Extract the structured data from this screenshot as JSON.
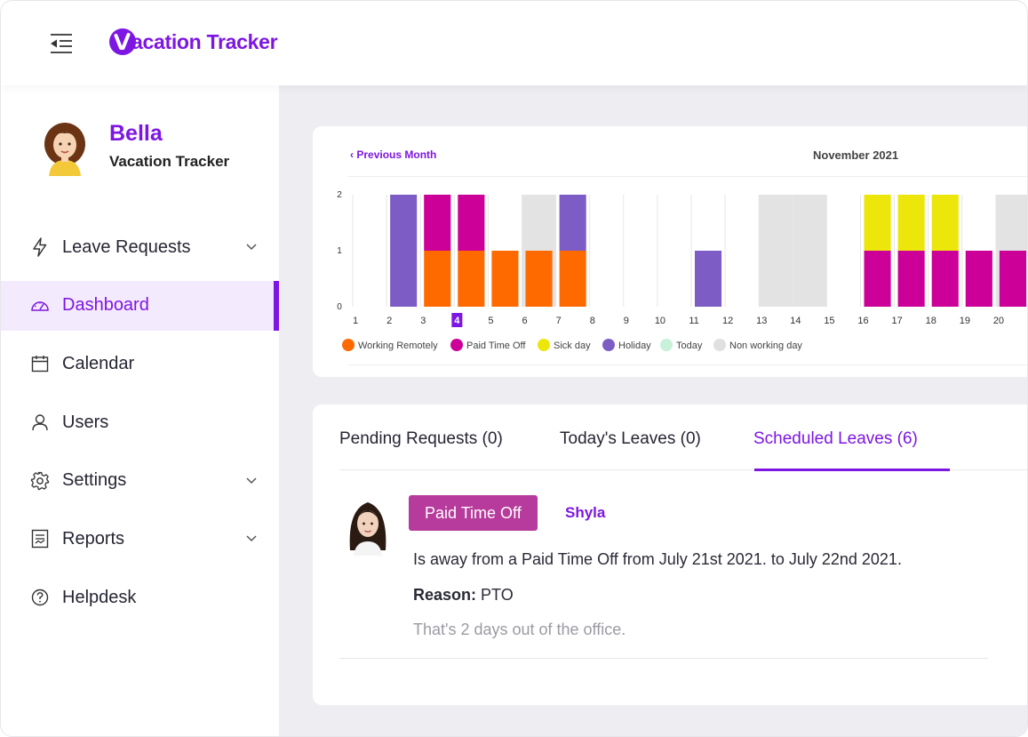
{
  "header": {
    "brand_name": "acation Tracker",
    "brand_mark": "V",
    "brand_color": "#7d16e3"
  },
  "sidebar": {
    "profile": {
      "name": "Bella",
      "subtitle": "Vacation Tracker"
    },
    "items": [
      {
        "label": "Leave Requests",
        "icon": "bolt-icon",
        "has_chevron": true,
        "active": false
      },
      {
        "label": "Dashboard",
        "icon": "dashboard-gauge-icon",
        "has_chevron": false,
        "active": true
      },
      {
        "label": "Calendar",
        "icon": "calendar-icon",
        "has_chevron": false,
        "active": false
      },
      {
        "label": "Users",
        "icon": "user-icon",
        "has_chevron": false,
        "active": false
      },
      {
        "label": "Settings",
        "icon": "gear-icon",
        "has_chevron": true,
        "active": false
      },
      {
        "label": "Reports",
        "icon": "report-icon",
        "has_chevron": true,
        "active": false
      },
      {
        "label": "Helpdesk",
        "icon": "help-icon",
        "has_chevron": false,
        "active": false
      }
    ]
  },
  "calendar": {
    "prev_label": "Previous Month",
    "month_title": "November 2021"
  },
  "chart_data": {
    "type": "bar",
    "stacked": true,
    "categories": [
      "1",
      "2",
      "3",
      "4",
      "5",
      "6",
      "7",
      "8",
      "9",
      "10",
      "11",
      "12",
      "13",
      "14",
      "15",
      "16",
      "17",
      "18",
      "19",
      "20"
    ],
    "highlighted_category": "4",
    "ylim": [
      0,
      2
    ],
    "yticks": [
      "0",
      "1",
      "2"
    ],
    "non_working_days": [
      "6",
      "13",
      "14",
      "20"
    ],
    "series": [
      {
        "name": "Working Remotely",
        "color": "#ff6a00",
        "values": [
          0,
          0,
          1,
          1,
          1,
          1,
          1,
          0,
          0,
          0,
          0,
          0,
          0,
          0,
          0,
          0,
          0,
          0,
          0,
          0
        ]
      },
      {
        "name": "Paid Time Off",
        "color": "#cc0099",
        "values": [
          0,
          0,
          1,
          1,
          0,
          0,
          0,
          0,
          0,
          0,
          0,
          0,
          0,
          0,
          0,
          1,
          1,
          1,
          1,
          1
        ]
      },
      {
        "name": "Sick day",
        "color": "#ece60a",
        "values": [
          0,
          0,
          0,
          0,
          0,
          0,
          0,
          0,
          0,
          0,
          0,
          0,
          0,
          0,
          0,
          1,
          1,
          1,
          0,
          0
        ]
      },
      {
        "name": "Holiday",
        "color": "#7d5cc6",
        "values": [
          0,
          2,
          0,
          0,
          0,
          0,
          1,
          0,
          0,
          0,
          1,
          0,
          0,
          0,
          0,
          0,
          0,
          0,
          0,
          0
        ]
      }
    ],
    "legend": [
      {
        "name": "Working Remotely",
        "color": "#ff6a00"
      },
      {
        "name": "Paid Time Off",
        "color": "#cc0099"
      },
      {
        "name": "Sick day",
        "color": "#ece60a"
      },
      {
        "name": "Holiday",
        "color": "#7d5cc6"
      },
      {
        "name": "Today",
        "color": "#c9f0d8"
      },
      {
        "name": "Non working day",
        "color": "#e0e0e0"
      }
    ],
    "legend_position": "bottom-left",
    "grid": true
  },
  "tabs": [
    {
      "label": "Pending Requests (0)",
      "active": false
    },
    {
      "label": "Today's Leaves (0)",
      "active": false
    },
    {
      "label": "Scheduled Leaves (6)",
      "active": true
    }
  ],
  "leave": {
    "type": "Paid Time Off",
    "employee": "Shyla",
    "description": "Is away from a Paid Time Off from July 21st 2021. to July 22nd 2021.",
    "reason_label": "Reason:",
    "reason_value": "PTO",
    "duration_text": "That's 2 days out of the office."
  }
}
